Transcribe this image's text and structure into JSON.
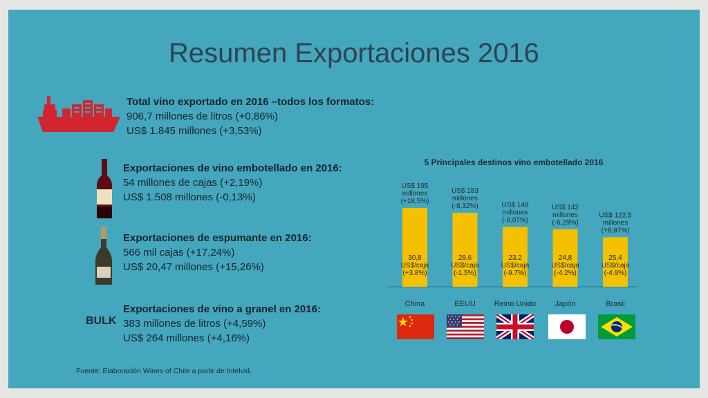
{
  "title": "Resumen Exportaciones 2016",
  "total": {
    "head": "Total vino exportado en 2016 –todos los formatos:",
    "line1": "906,7 millones de litros (+0,86%)",
    "line2": "US$ 1.845 millones (+3,53%)"
  },
  "bottled": {
    "head": "Exportaciones de vino embotellado en 2016:",
    "line1": "54 millones de cajas (+2,19%)",
    "line2": "US$ 1.508 millones (-0,13%)"
  },
  "sparkling": {
    "head": "Exportaciones de espumante en 2016:",
    "line1": "566 mil cajas (+17,24%)",
    "line2": "US$ 20,47 millones (+15,26%)"
  },
  "bulk": {
    "label": "BULK",
    "head": "Exportaciones de vino a granel en 2016:",
    "line1": "383 millones de litros (+4,59%)",
    "line2": "US$ 264 millones (+4,16%)"
  },
  "source": "Fuente: Elaboración Wines of Chile a partir de Intelvid.",
  "colors": {
    "background": "#44a7bd",
    "bar": "#f5c000",
    "title": "#2d4450",
    "ship": "#d32530"
  },
  "chart_data": {
    "type": "bar",
    "title": "5 Principales destinos vino embotellado 2016",
    "categories": [
      "China",
      "EEUU",
      "Reino Unido",
      "Japón",
      "Brasil"
    ],
    "values": [
      195,
      183,
      148,
      142,
      122.5
    ],
    "ylim": [
      0,
      200
    ],
    "top_labels": [
      [
        "US$ 195",
        "millones",
        "(+18,5%)"
      ],
      [
        "US$ 183",
        "millones",
        "(-8,32%)"
      ],
      [
        "US$ 148",
        "millones",
        "(-9,07%)"
      ],
      [
        "US$ 142",
        "millones",
        "(-6,29%)"
      ],
      [
        "US$ 122.5",
        "millones",
        "(+8,97%)"
      ]
    ],
    "inner_labels": [
      [
        "30,8",
        "US$/caja",
        "(+3.8%)"
      ],
      [
        "28,6",
        "US$/caja",
        "(-1.5%)"
      ],
      [
        "23,2",
        "US$/caja",
        "(-9.7%)"
      ],
      [
        "24,8",
        "US$/caja",
        "(-4.2%)"
      ],
      [
        "25,4",
        "US$/caja",
        "(-4.9%)"
      ]
    ],
    "grid": false,
    "legend": "none"
  }
}
